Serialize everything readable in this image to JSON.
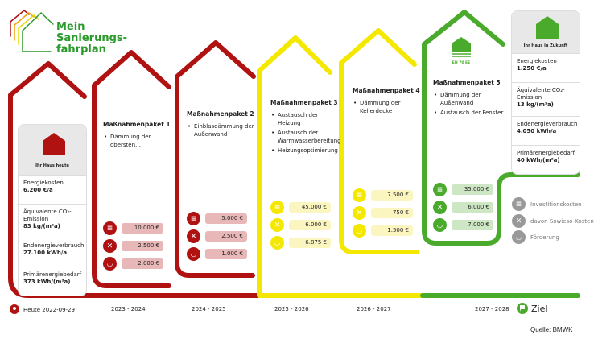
{
  "logo": {
    "line1": "Mein",
    "line2": "Sanierungs-",
    "line3": "fahrplan"
  },
  "colors": {
    "red": "#b01212",
    "yellow": "#f5e800",
    "green": "#4aaa2c",
    "red_box": "#e8b7b7",
    "yellow_box": "#fbf5c0",
    "green_box": "#cde6c4"
  },
  "today": {
    "label": "Ihr Haus heute",
    "metrics": [
      {
        "label": "Energiekosten",
        "value": "6.200 €/a"
      },
      {
        "label": "Äquivalente CO₂-Emission",
        "value": "83 kg/(m²a)"
      },
      {
        "label": "Endenergieverbrauch",
        "value": "27.100 kWh/a"
      },
      {
        "label": "Primärenergiebedarf",
        "value": "373 kWh/(m²a)"
      }
    ]
  },
  "future": {
    "label": "Ihr Haus in Zukunft",
    "metrics": [
      {
        "label": "Energiekosten",
        "value": "1.250 €/a"
      },
      {
        "label": "Äquivalente CO₂-Emission",
        "value": "13 kg/(m²a)"
      },
      {
        "label": "Endenergieverbrauch",
        "value": "4.050 kWh/a"
      },
      {
        "label": "Primärenergiebedarf",
        "value": "40 kWh/(m²a)"
      }
    ]
  },
  "packages": [
    {
      "title": "Maßnahmenpaket 1",
      "items": [
        "Dämmung der obersten…"
      ],
      "costs": [
        "10.000 €",
        "2.500 €",
        "2.000 €"
      ],
      "color": "red"
    },
    {
      "title": "Maßnahmenpaket 2",
      "items": [
        "Einblasdämmung der Außenwand"
      ],
      "costs": [
        "5.000 €",
        "2.500 €",
        "1.000 €"
      ],
      "color": "red"
    },
    {
      "title": "Maßnahmenpaket 3",
      "items": [
        "Austausch der Heizung",
        "Austausch der Warmwasserbereitung",
        "Heizungsoptimierung"
      ],
      "costs": [
        "45.000 €",
        "6.000 €",
        "6.875 €"
      ],
      "color": "yellow"
    },
    {
      "title": "Maßnahmenpaket 4",
      "items": [
        "Dämmung der Kellerdecke"
      ],
      "costs": [
        "7.500 €",
        "750 €",
        "1.500 €"
      ],
      "color": "yellow"
    },
    {
      "title": "Maßnahmenpaket  5",
      "items": [
        "Dämmung der Außenwand",
        "Austausch der Fenster"
      ],
      "costs": [
        "35.000 €",
        "6.000 €",
        "7.000 €"
      ],
      "color": "green",
      "badge": "EH 70 EE"
    }
  ],
  "legend": [
    "Investitionskosten",
    "davon Sowieso-Kosten",
    "Förderung"
  ],
  "icons": [
    "coins-icon",
    "wrench-coins-icon",
    "hand-coins-icon"
  ],
  "timeline": [
    "Heute 2022-09-29",
    "2023 - 2024",
    "2024 - 2025",
    "2025 - 2026",
    "2026 - 2027",
    "2027 - 2028"
  ],
  "goal": "Ziel",
  "source": "Quelle: BMWK"
}
